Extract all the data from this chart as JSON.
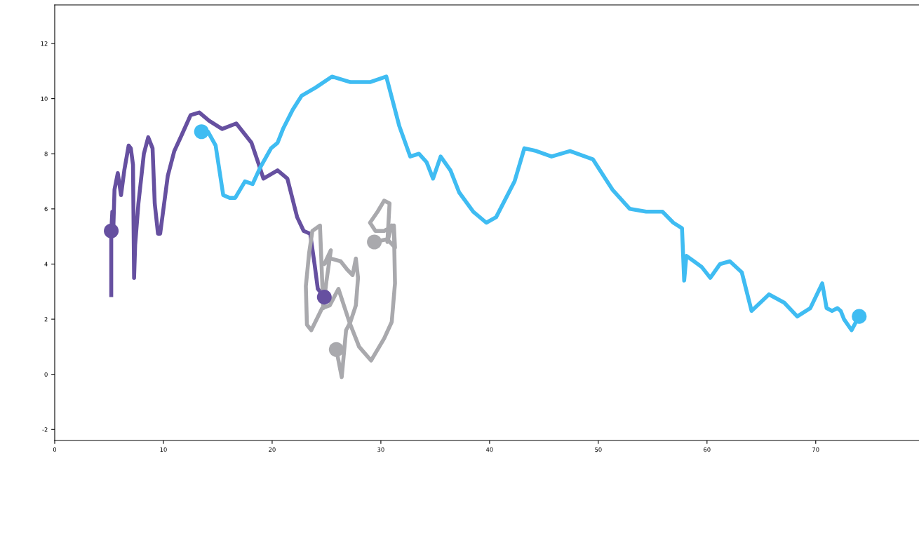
{
  "chart_data": {
    "type": "line",
    "xlim": [
      0,
      79.5
    ],
    "ylim": [
      -2.4,
      13.4
    ],
    "xticks": [
      0,
      10,
      20,
      30,
      40,
      50,
      60,
      70
    ],
    "yticks": [
      -2,
      0,
      2,
      4,
      6,
      8,
      10,
      12
    ],
    "grid": false,
    "line_style": "solid",
    "series": [
      {
        "color": "#6650a0",
        "x": [
          5.2,
          5.2,
          5.3,
          5.4,
          5.5,
          5.8,
          6.1,
          6.4,
          6.8,
          7.0,
          7.2,
          7.3,
          7.4,
          7.7,
          8.2,
          8.6,
          9.0,
          9.2,
          9.5,
          9.7,
          10.0,
          10.4,
          11.0,
          11.7,
          12.5,
          13.3,
          14.2,
          15.4,
          16.7,
          18.1,
          18.7,
          19.2,
          20.5,
          21.4,
          22.3,
          22.9,
          23.5,
          23.9,
          24.2,
          24.8
        ],
        "values": [
          2.8,
          5.2,
          5.9,
          5.4,
          6.7,
          7.3,
          6.5,
          7.4,
          8.3,
          8.2,
          7.6,
          3.5,
          4.7,
          6.2,
          8.0,
          8.6,
          8.2,
          6.2,
          5.1,
          5.1,
          6.0,
          7.2,
          8.1,
          8.7,
          9.4,
          9.5,
          9.2,
          8.9,
          9.1,
          8.4,
          7.7,
          7.1,
          7.4,
          7.1,
          5.7,
          5.2,
          5.1,
          4.0,
          3.1,
          2.8
        ]
      },
      {
        "color": "#3fbcf2",
        "x": [
          13.5,
          14.1,
          14.8,
          15.5,
          16.1,
          16.6,
          17.5,
          18.2,
          18.9,
          19.9,
          20.5,
          21.0,
          21.9,
          22.7,
          24.0,
          25.5,
          27.2,
          29.0,
          30.5,
          31.7,
          32.7,
          33.5,
          34.2,
          34.8,
          35.5,
          36.4,
          37.2,
          38.5,
          39.7,
          40.6,
          42.3,
          43.2,
          44.3,
          45.7,
          47.4,
          49.5,
          51.3,
          52.9,
          54.4,
          55.9,
          56.9,
          57.7,
          57.9,
          58.1,
          58.8,
          59.5,
          60.3,
          61.2,
          62.1,
          63.2,
          64.1,
          65.7,
          67.1,
          68.3,
          69.5,
          70.6,
          71.0,
          71.5,
          72.0,
          72.3,
          72.6,
          73.3,
          73.7,
          74.0
        ],
        "values": [
          8.8,
          8.8,
          8.3,
          6.5,
          6.4,
          6.4,
          7.0,
          6.9,
          7.5,
          8.2,
          8.4,
          8.9,
          9.6,
          10.1,
          10.4,
          10.8,
          10.6,
          10.6,
          10.8,
          9.0,
          7.9,
          8.0,
          7.7,
          7.1,
          7.9,
          7.4,
          6.6,
          5.9,
          5.5,
          5.7,
          7.0,
          8.2,
          8.1,
          7.9,
          8.1,
          7.8,
          6.7,
          6.0,
          5.9,
          5.9,
          5.5,
          5.3,
          3.4,
          4.3,
          4.1,
          3.9,
          3.5,
          4.0,
          4.1,
          3.7,
          2.3,
          2.9,
          2.6,
          2.1,
          2.4,
          3.3,
          2.4,
          2.3,
          2.4,
          2.3,
          2.0,
          1.6,
          1.9,
          2.1
        ]
      },
      {
        "color": "#a9a9ad",
        "x": [
          25.9,
          26.4,
          26.8,
          27.2,
          27.7,
          27.9,
          27.7,
          27.4,
          26.9,
          26.3,
          25.4,
          24.8,
          25.4,
          25.0,
          24.7,
          24.4,
          23.7,
          23.4,
          23.1,
          23.2,
          23.6,
          24.6,
          25.3,
          26.1,
          27.1,
          28.0,
          29.1,
          30.3,
          31.0,
          31.3,
          31.2,
          31.0,
          30.6,
          30.8,
          30.3,
          29.7,
          29.0,
          29.5,
          30.3,
          31.2,
          31.3,
          30.6,
          29.4
        ],
        "values": [
          0.9,
          -0.1,
          1.6,
          1.9,
          2.5,
          3.5,
          4.2,
          3.6,
          3.8,
          4.1,
          4.2,
          4.0,
          4.5,
          3.4,
          2.4,
          5.4,
          5.2,
          4.4,
          3.2,
          1.8,
          1.6,
          2.4,
          2.5,
          3.1,
          1.9,
          1.0,
          0.5,
          1.3,
          1.9,
          3.3,
          5.3,
          5.4,
          4.8,
          6.2,
          6.3,
          5.9,
          5.5,
          5.2,
          5.2,
          5.4,
          4.6,
          4.9,
          4.8
        ]
      },
      {
        "type": "scatter",
        "marker": "circle",
        "color": "#6650a0",
        "x": [
          5.2,
          24.8
        ],
        "values": [
          5.2,
          2.8
        ]
      },
      {
        "type": "scatter",
        "marker": "circle",
        "color": "#3fbcf2",
        "x": [
          13.5,
          74.0
        ],
        "values": [
          8.8,
          2.1
        ]
      },
      {
        "type": "scatter",
        "marker": "circle",
        "color": "#a9a9ad",
        "x": [
          25.9,
          29.4
        ],
        "values": [
          0.9,
          4.8
        ]
      }
    ]
  }
}
